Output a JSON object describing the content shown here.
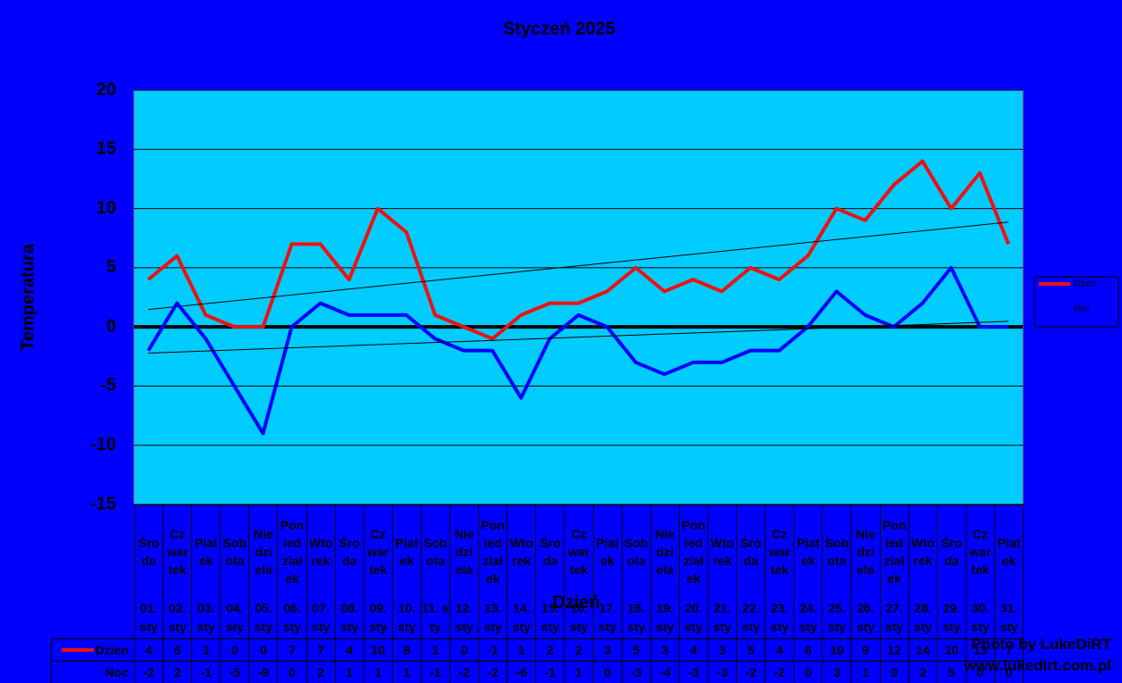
{
  "chart_data": {
    "type": "line",
    "title": "Styczeń 2025",
    "x_label": "Dzień",
    "y_label": "Temperatura",
    "weekdays": [
      "Środa",
      "Czwartek",
      "Piatek",
      "Sobota",
      "Niedziela",
      "Poniedziałek",
      "Wtorek",
      "Środa",
      "Czwartek",
      "Piatek",
      "Sobota",
      "Niedziela",
      "Poniedziałek",
      "Wtorek",
      "Środa",
      "Czwartek",
      "Piatek",
      "Sobota",
      "Niedziela",
      "Poniedziałek",
      "Wtorek",
      "Środa",
      "Czwartek",
      "Piatek",
      "Sobota",
      "Niedziela",
      "Poniedziałek",
      "Wtorek",
      "Środa",
      "Czwartek",
      "Piatek"
    ],
    "categories": [
      "01. sty",
      "02. sty",
      "03. sty",
      "04. sty",
      "05. sty",
      "06. sty",
      "07. sty",
      "08. sty",
      "09. sty",
      "10. sty",
      "11. sty",
      "12. sty",
      "13. sty",
      "14. sty",
      "15. sty",
      "16. sty",
      "17. sty",
      "18. sty",
      "19. sty",
      "20. sty",
      "21. sty",
      "22. sty",
      "23. sty",
      "24. sty",
      "25. sty",
      "26. sty",
      "27. sty",
      "28. sty",
      "29. sty",
      "30. sty",
      "31. sty"
    ],
    "series": [
      {
        "name": "Dzien",
        "color": "#ee1111",
        "values": [
          4,
          6,
          1,
          0,
          0,
          7,
          7,
          4,
          10,
          8,
          1,
          0,
          -1,
          1,
          2,
          2,
          3,
          5,
          3,
          4,
          3,
          5,
          4,
          6,
          10,
          9,
          12,
          14,
          10,
          13,
          7
        ]
      },
      {
        "name": "Noc",
        "color": "#0000ff",
        "values": [
          -2,
          2,
          -1,
          -5,
          -9,
          0,
          2,
          1,
          1,
          1,
          -1,
          -2,
          -2,
          -6,
          -1,
          1,
          0,
          -3,
          -4,
          -3,
          -3,
          -2,
          -2,
          0,
          3,
          1,
          0,
          2,
          5,
          0,
          0
        ]
      }
    ],
    "ylim": [
      -15,
      20
    ],
    "yticks": [
      -15,
      -10,
      -5,
      0,
      5,
      10,
      15,
      20
    ],
    "grid": true,
    "trendline": true,
    "legend": "right",
    "watermark": [
      "Photo by LukeDiRT",
      "www.lukedirt.com.pl"
    ]
  }
}
